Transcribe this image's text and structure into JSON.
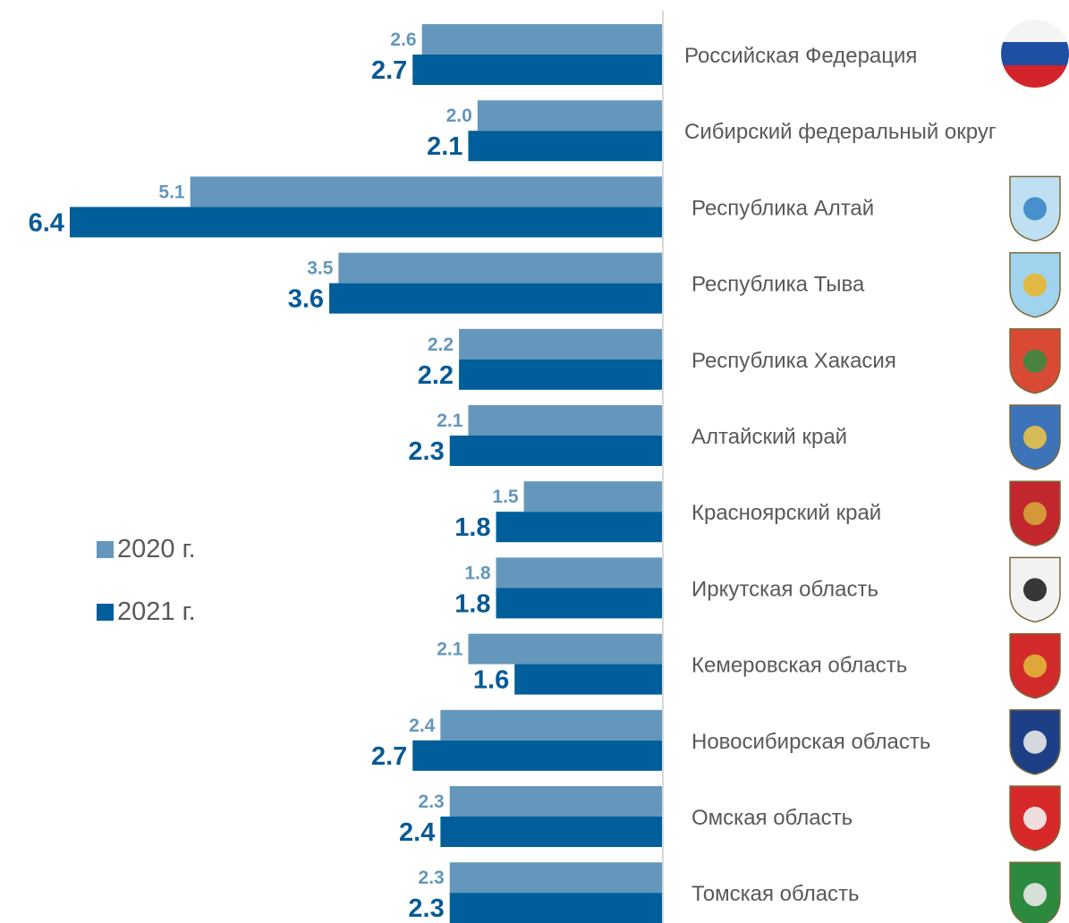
{
  "chart_data": {
    "type": "bar",
    "orientation": "horizontal",
    "categories": [
      "Российская Федерация",
      "Сибирский федеральный округ",
      "Республика Алтай",
      "Республика Тыва",
      "Республика Хакасия",
      "Алтайский край",
      "Красноярский край",
      "Иркутская область",
      "Кемеровская область",
      "Новосибирская область",
      "Омская область",
      "Томская область"
    ],
    "series": [
      {
        "name": "2020 г.",
        "color": "#6497bb",
        "label_color": "#6497bb",
        "values": [
          2.6,
          2.0,
          5.1,
          3.5,
          2.2,
          2.1,
          1.5,
          1.8,
          2.1,
          2.4,
          2.3,
          2.3
        ],
        "labels": [
          "2.6",
          "2.0",
          "5.1",
          "3.5",
          "2.2",
          "2.1",
          "1.5",
          "1.8",
          "2.1",
          "2.4",
          "2.3",
          "2.3"
        ]
      },
      {
        "name": "2021 г.",
        "color": "#005e9a",
        "label_color": "#075a96",
        "values": [
          2.7,
          2.1,
          6.4,
          3.6,
          2.2,
          2.3,
          1.8,
          1.8,
          1.6,
          2.7,
          2.4,
          2.3
        ],
        "labels": [
          "2.7",
          "2.1",
          "6.4",
          "3.6",
          "2.2",
          "2.3",
          "1.8",
          "1.8",
          "1.6",
          "2.7",
          "2.4",
          "2.3"
        ]
      }
    ],
    "legend_position": "left-middle",
    "grid": false,
    "axis_color": "#d9d9d9",
    "category_label_color": "#595959",
    "emblems": [
      "russia-flag-icon",
      "",
      "altai-republic-emblem-icon",
      "tuva-emblem-icon",
      "khakassia-emblem-icon",
      "altai-krai-emblem-icon",
      "krasnoyarsk-emblem-icon",
      "irkutsk-emblem-icon",
      "kemerovo-emblem-icon",
      "novosibirsk-emblem-icon",
      "omsk-emblem-icon",
      "tomsk-emblem-icon"
    ]
  }
}
